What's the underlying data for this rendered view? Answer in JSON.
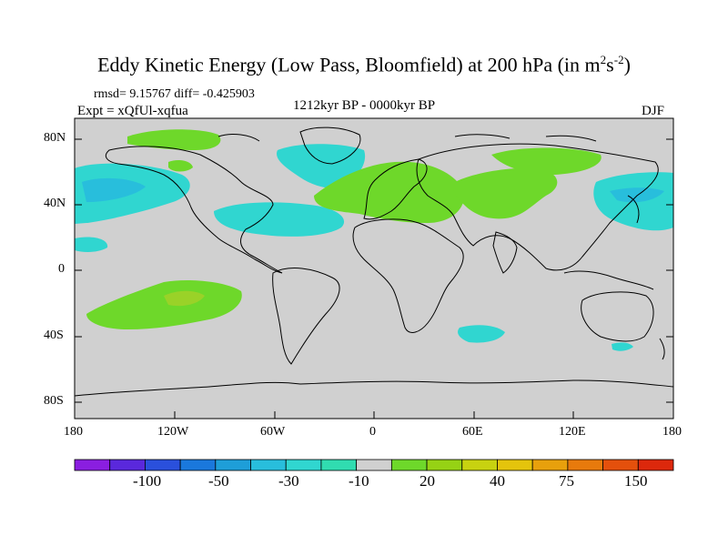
{
  "title": {
    "main": "Eddy Kinetic Energy (Low Pass, Bloomfield) at 200 hPa (in m",
    "exp1": "2",
    "mid": "s",
    "exp2": "-2",
    "end": ")"
  },
  "stats": "rmsd= 9.15767 diff= -0.425903",
  "expt": "Expt = xQfUl-xqfua",
  "period": "1212kyr BP - 0000kyr BP",
  "season": "DJF",
  "y_ticks": [
    "80N",
    "40N",
    "0",
    "40S",
    "80S"
  ],
  "x_ticks": [
    "180",
    "120W",
    "60W",
    "0",
    "60E",
    "120E",
    "180"
  ],
  "colorbar": {
    "labels": [
      "-100",
      "-50",
      "-30",
      "-10",
      "20",
      "40",
      "75",
      "150"
    ],
    "colors": [
      "#8a1ee0",
      "#5a28dc",
      "#2a50dc",
      "#1a78dc",
      "#1e9ed8",
      "#28bedc",
      "#30d6d0",
      "#30dcb0",
      "#d0d0d0",
      "#6ed82a",
      "#96d214",
      "#c8d210",
      "#e4c40c",
      "#e8a00c",
      "#e87a0c",
      "#e4500c",
      "#dc280c"
    ]
  },
  "colors": {
    "background": "#d0d0d0",
    "cyan": "#30d6d0",
    "green": "#6ed82a",
    "lightgreen": "#9ad228"
  }
}
